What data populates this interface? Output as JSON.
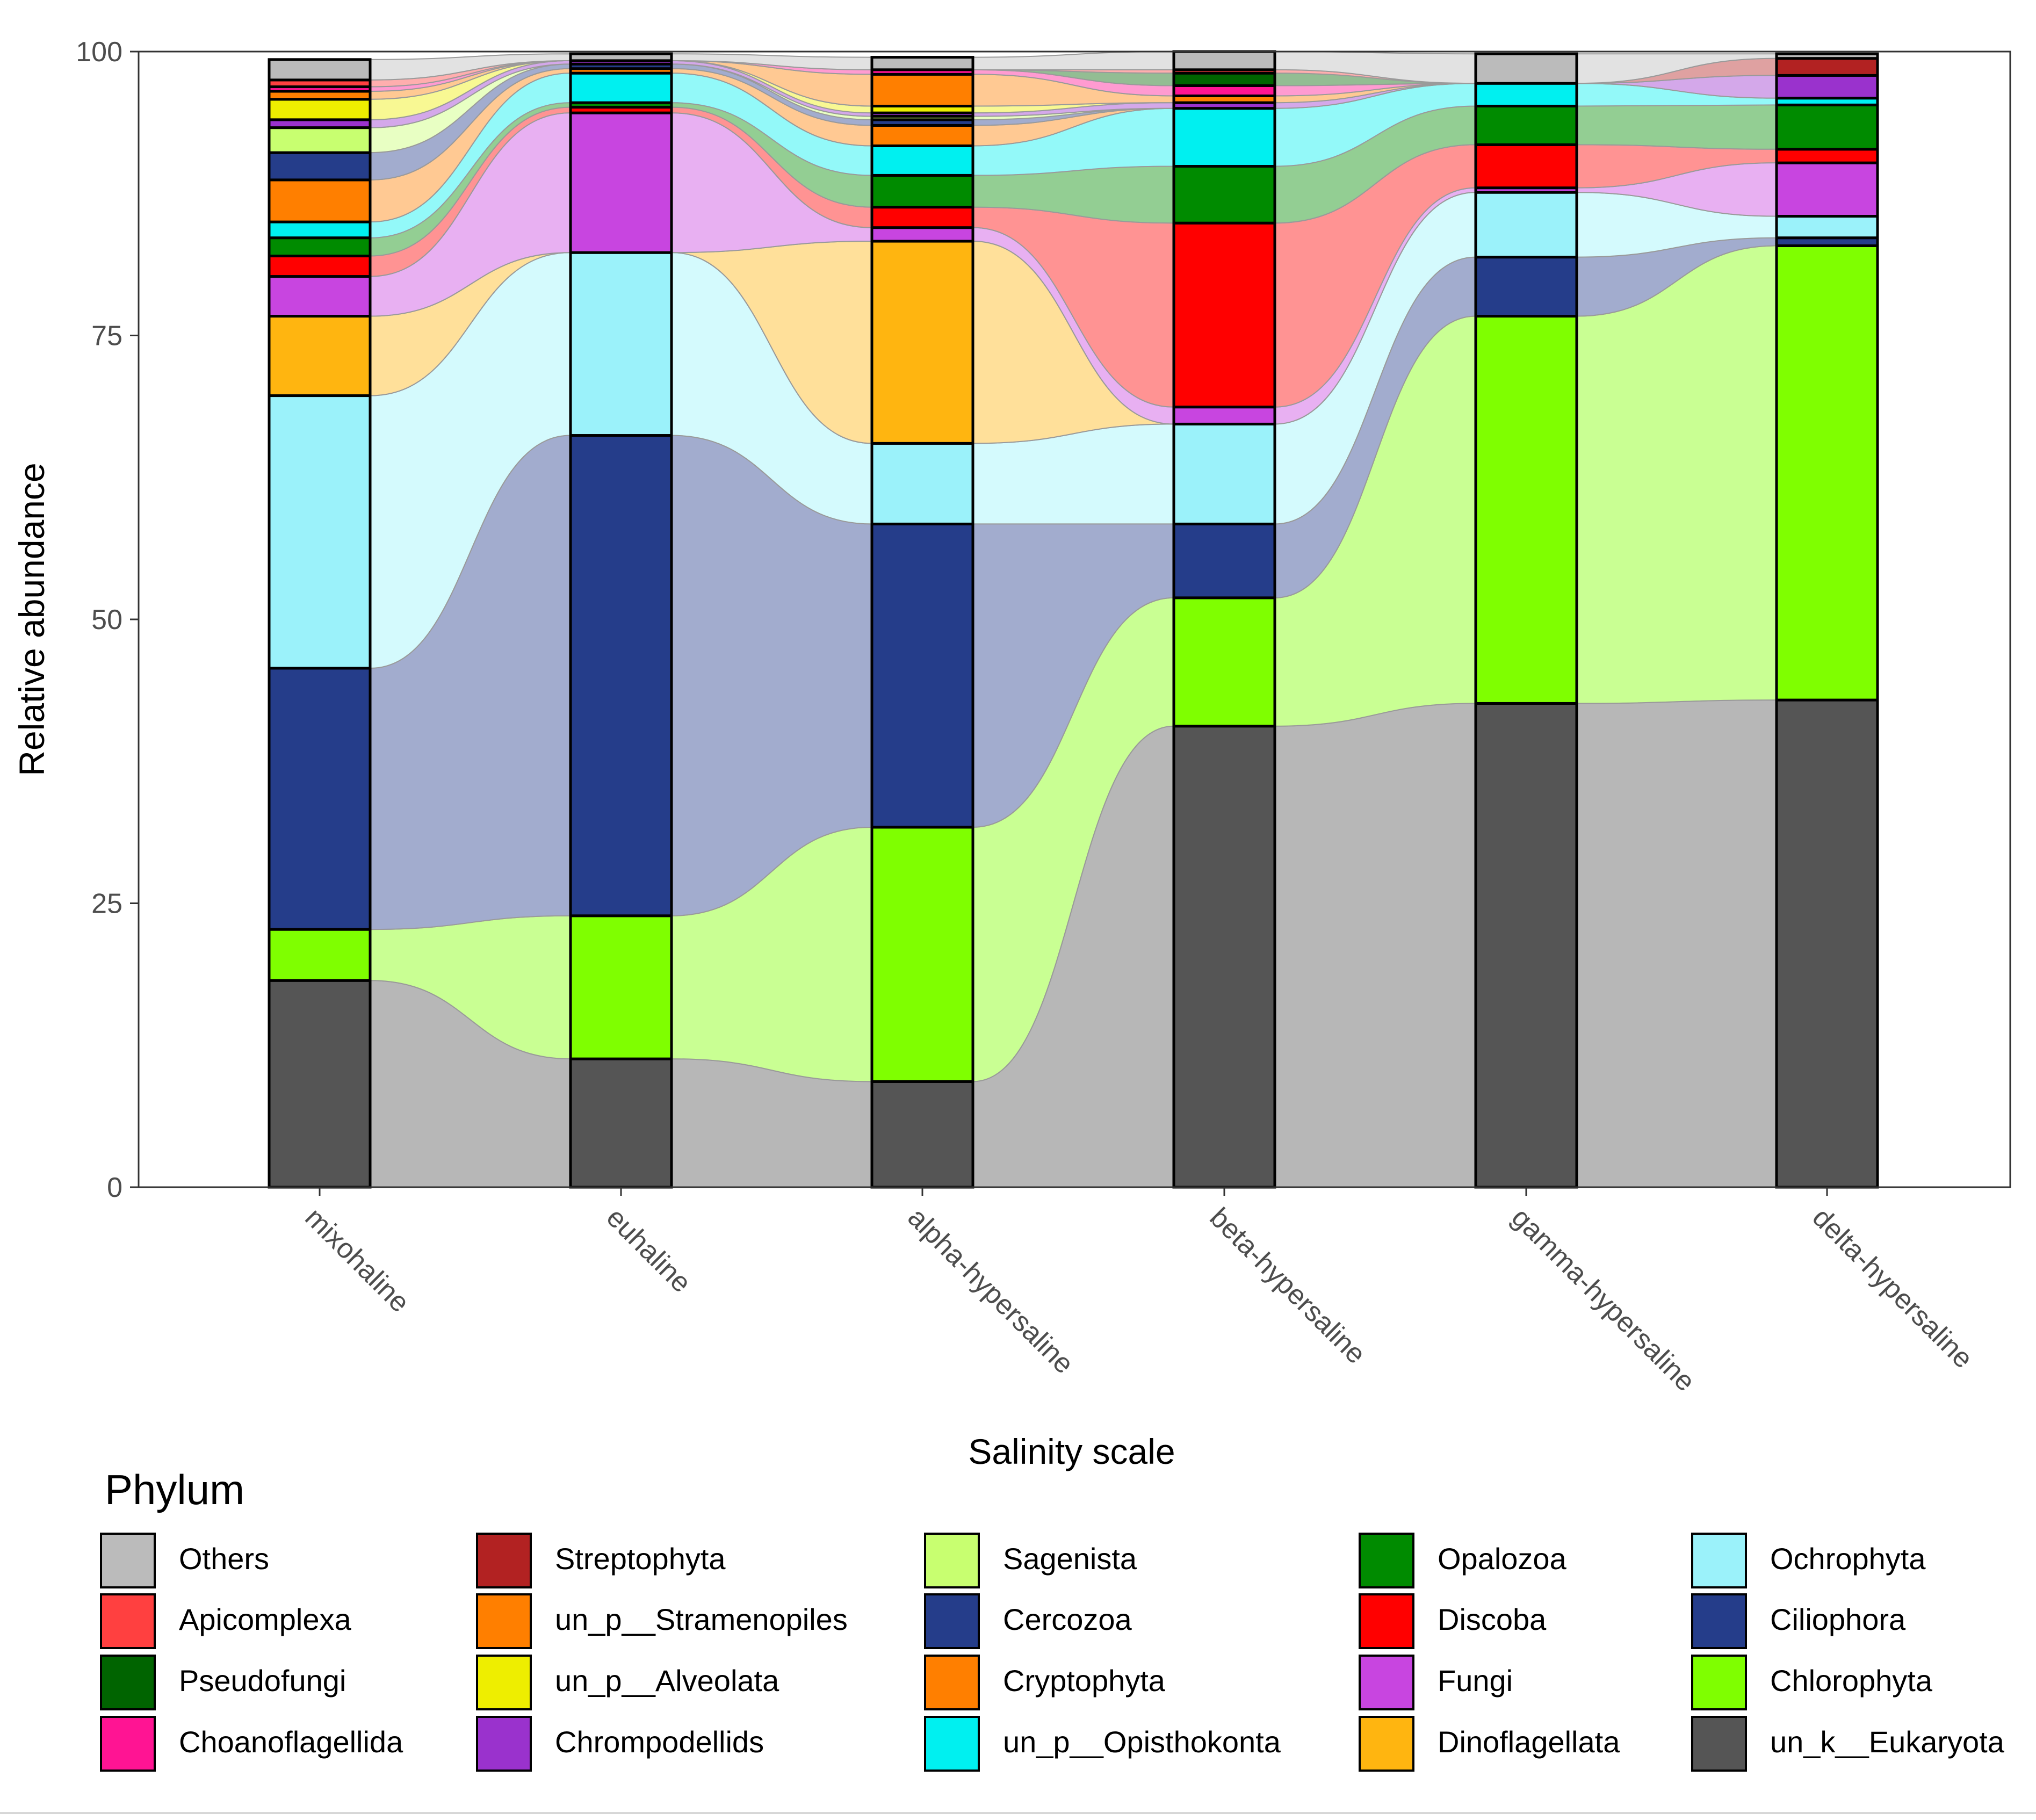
{
  "chart_data": {
    "type": "bar",
    "subtype": "stacked-alluvial",
    "xlabel": "Salinity scale",
    "ylabel": "Relative abundance",
    "ylim": [
      0,
      100
    ],
    "yticks": [
      0,
      25,
      50,
      75,
      100
    ],
    "grid": false,
    "legend_title": "Phylum",
    "legend_position": "bottom",
    "categories": [
      "mixohaline",
      "euhaline",
      "alpha-hypersaline",
      "beta-hypersaline",
      "gamma-hypersaline",
      "delta-hypersaline"
    ],
    "series": [
      {
        "name": "un_k__Eukaryota",
        "color": "#555555",
        "values": [
          18.2,
          11.3,
          9.3,
          40.6,
          42.6,
          42.9
        ]
      },
      {
        "name": "Chlorophyta",
        "color": "#7FFF00",
        "values": [
          4.5,
          12.6,
          22.4,
          11.3,
          34.1,
          40.0
        ]
      },
      {
        "name": "Ciliophora",
        "color": "#253D8A",
        "values": [
          23.0,
          42.3,
          26.7,
          6.5,
          5.2,
          0.7
        ]
      },
      {
        "name": "Ochrophyta",
        "color": "#9BF2FA",
        "values": [
          24.0,
          16.1,
          7.1,
          8.8,
          5.7,
          1.9
        ]
      },
      {
        "name": "Dinoflagellata",
        "color": "#FFB510",
        "values": [
          7.0,
          0.0,
          17.8,
          0.0,
          0.0,
          0.0
        ]
      },
      {
        "name": "Fungi",
        "color": "#C845E0",
        "values": [
          3.5,
          12.3,
          1.2,
          1.5,
          0.4,
          4.7
        ]
      },
      {
        "name": "Discoba",
        "color": "#FF0000",
        "values": [
          1.8,
          0.5,
          1.8,
          16.2,
          3.8,
          1.2
        ]
      },
      {
        "name": "Opalozoa",
        "color": "#008B00",
        "values": [
          1.6,
          0.4,
          2.8,
          5.0,
          3.4,
          3.9
        ]
      },
      {
        "name": "un_p__Opisthokonta",
        "color": "#00F0F0",
        "values": [
          1.4,
          2.6,
          2.6,
          5.1,
          2.0,
          0.6
        ]
      },
      {
        "name": "Cryptophyta",
        "color": "#FF7F00",
        "values": [
          3.7,
          0.4,
          1.8,
          0.0,
          0.0,
          0.0
        ]
      },
      {
        "name": "Cercozoa",
        "color": "#253D8A",
        "values": [
          2.4,
          0.4,
          0.5,
          0.0,
          0.0,
          0.0
        ]
      },
      {
        "name": "Sagenista",
        "color": "#C8FF70",
        "values": [
          2.2,
          0.0,
          0.3,
          0.0,
          0.0,
          0.0
        ]
      },
      {
        "name": "Chrompodellids",
        "color": "#9A32CD",
        "values": [
          0.7,
          0.3,
          0.3,
          0.5,
          0.0,
          2.0
        ]
      },
      {
        "name": "un_p__Alveolata",
        "color": "#EEEE00",
        "values": [
          1.8,
          0.0,
          0.6,
          0.0,
          0.0,
          0.0
        ]
      },
      {
        "name": "un_p__Stramenopiles",
        "color": "#FF7F00",
        "values": [
          0.7,
          0.0,
          2.8,
          0.6,
          0.0,
          0.0
        ]
      },
      {
        "name": "Choanoflagellida",
        "color": "#FF1493",
        "values": [
          0.4,
          0.0,
          0.4,
          0.9,
          0.0,
          0.0
        ]
      },
      {
        "name": "Pseudofungi",
        "color": "#006400",
        "values": [
          0.0,
          0.0,
          0.0,
          1.1,
          0.0,
          0.0
        ]
      },
      {
        "name": "Apicomplexa",
        "color": "#FF4040",
        "values": [
          0.6,
          0.0,
          0.0,
          0.3,
          0.0,
          0.0
        ]
      },
      {
        "name": "Streptophyta",
        "color": "#B22222",
        "values": [
          0.0,
          0.0,
          0.0,
          0.0,
          0.0,
          1.5
        ]
      },
      {
        "name": "Others",
        "color": "#BBBBBB",
        "values": [
          1.8,
          0.6,
          1.1,
          1.6,
          2.6,
          0.4
        ]
      }
    ],
    "legend_order": [
      "Others",
      "Apicomplexa",
      "Pseudofungi",
      "Choanoflagellida",
      "Streptophyta",
      "un_p__Stramenopiles",
      "un_p__Alveolata",
      "Chrompodellids",
      "Sagenista",
      "Cercozoa",
      "Cryptophyta",
      "un_p__Opisthokonta",
      "Opalozoa",
      "Discoba",
      "Fungi",
      "Dinoflagellata",
      "Ochrophyta",
      "Ciliophora",
      "Chlorophyta",
      "un_k__Eukaryota"
    ]
  }
}
